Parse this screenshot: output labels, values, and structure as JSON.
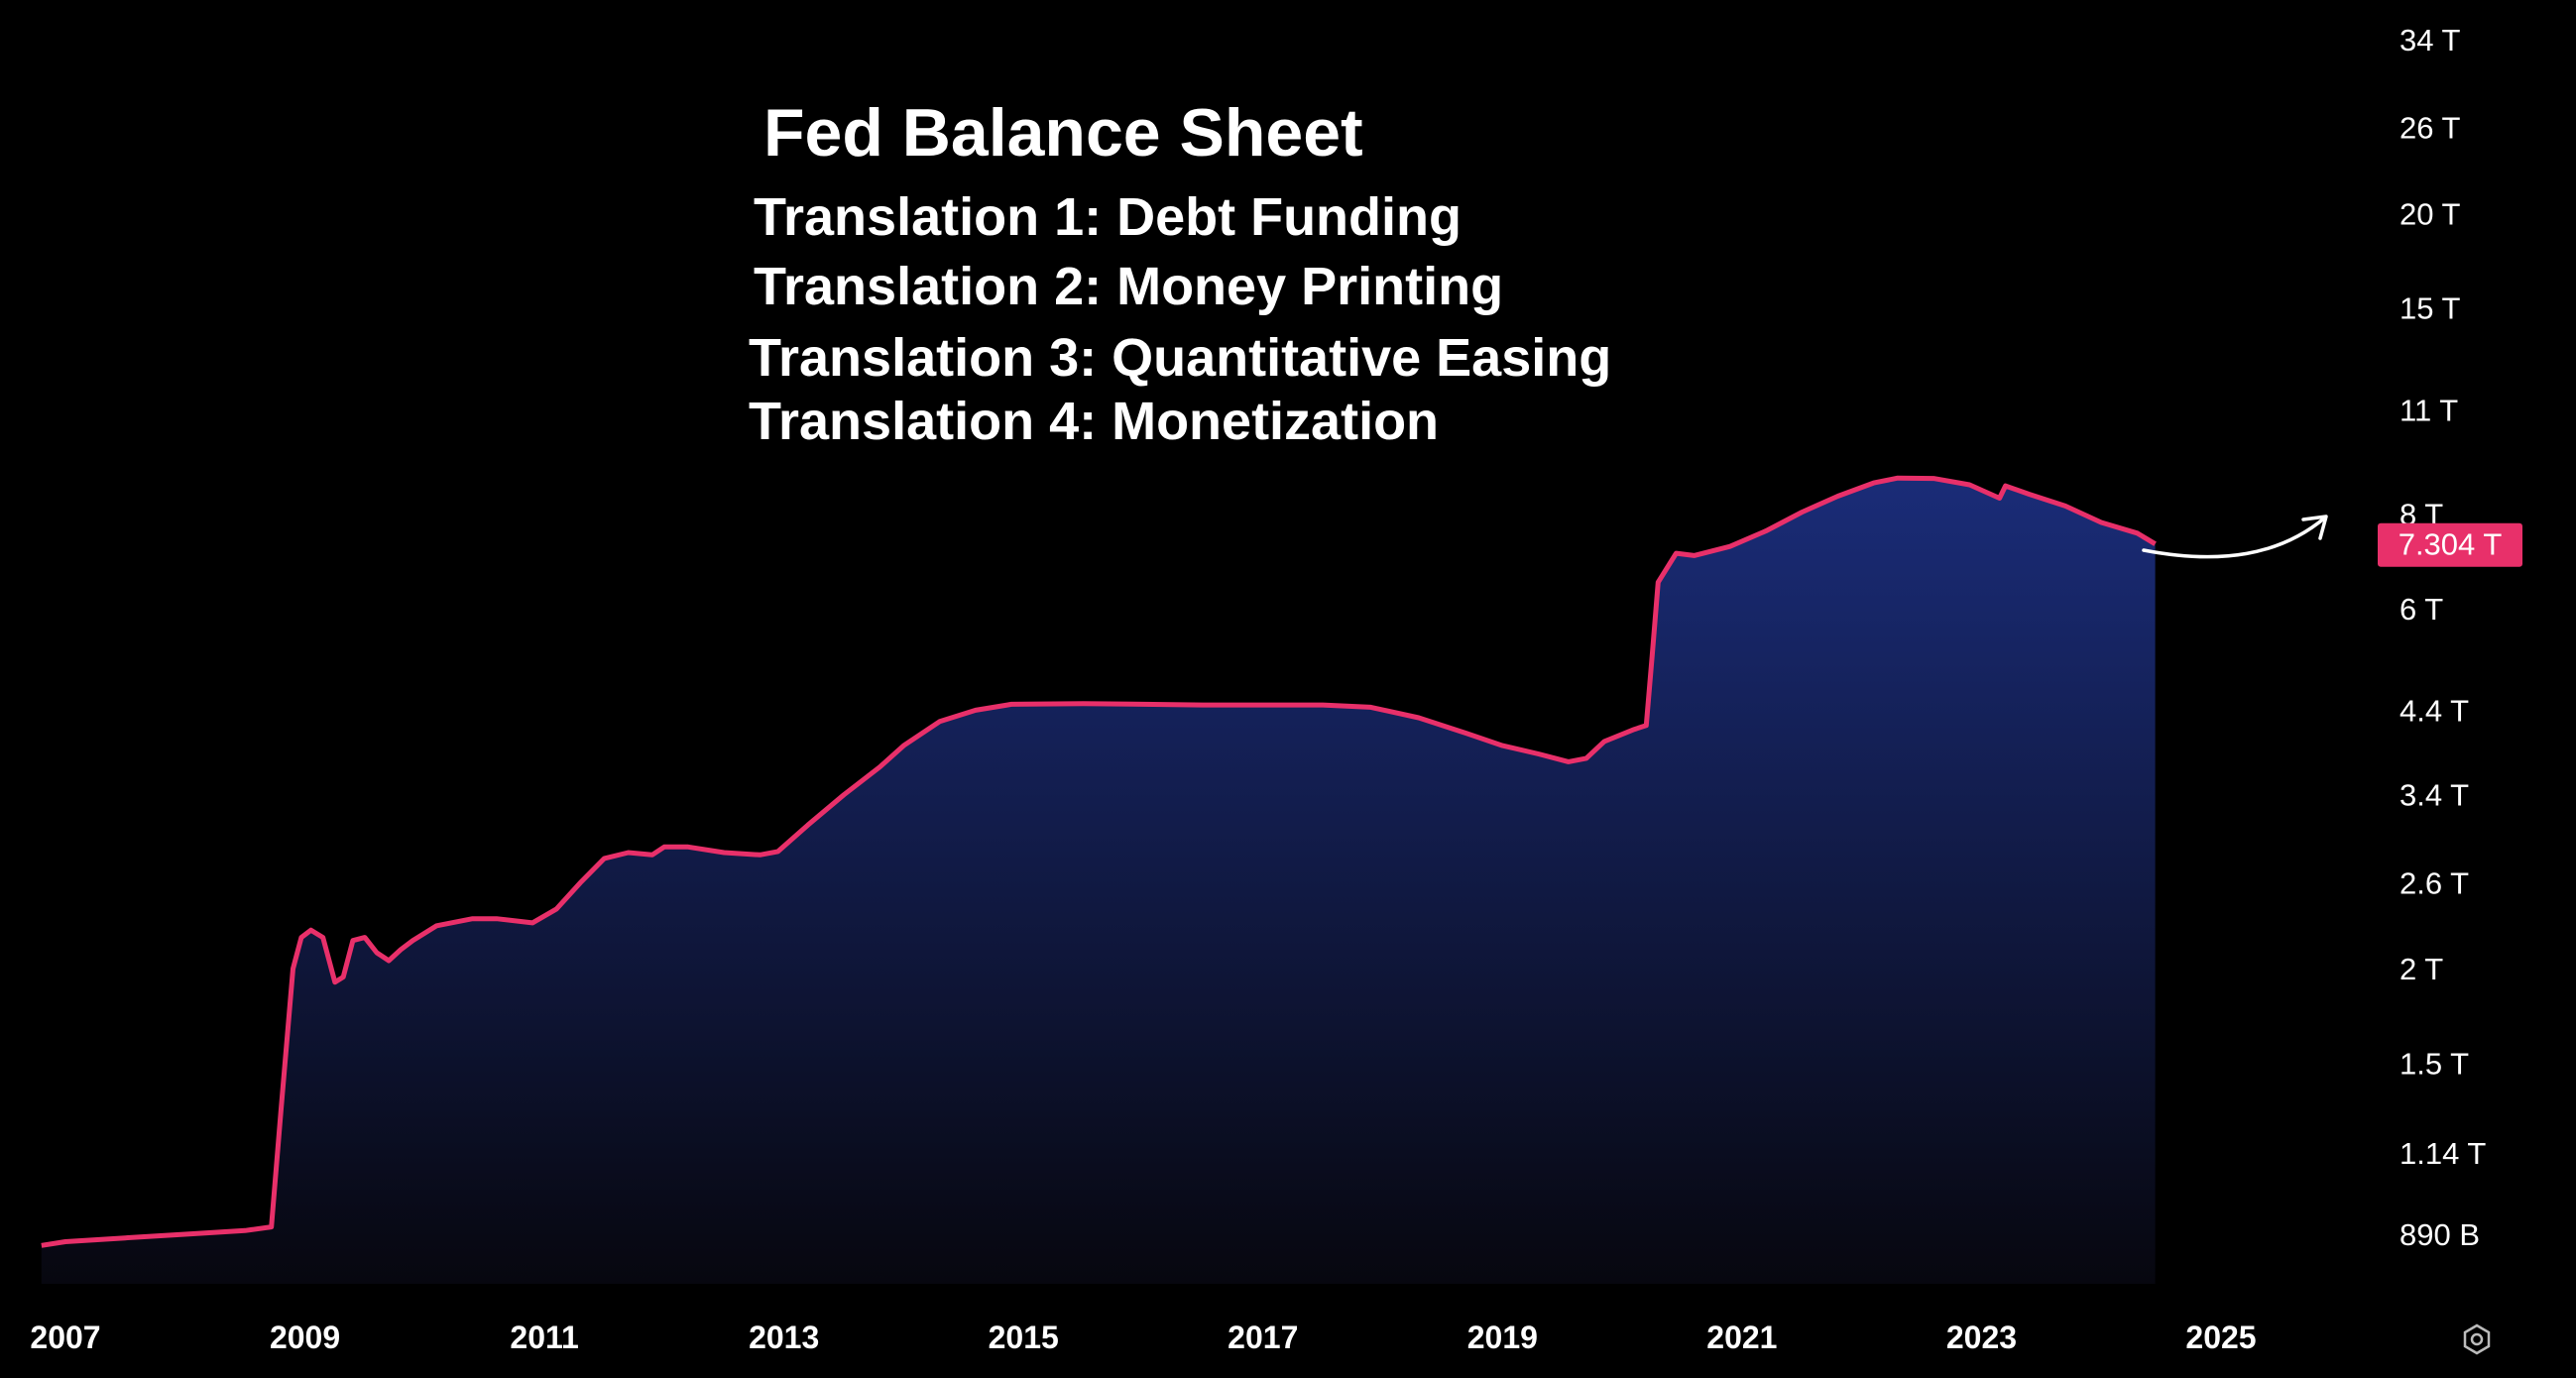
{
  "header": {
    "title": "Fed Balance Sheet",
    "translations": [
      "Translation 1: Debt Funding",
      "Translation 2: Money Printing",
      "Translation 3: Quantitative Easing",
      "Translation 4: Monetization"
    ]
  },
  "colors": {
    "background": "#000000",
    "line": "#e8306a",
    "fill_top": "#1a2c78",
    "fill_bottom": "#07070f",
    "axis_text": "#ffffff",
    "price_badge": "#e8306a"
  },
  "icons": {
    "settings": "gear-icon",
    "annotation": "curved-arrow-icon"
  },
  "chart_data": {
    "type": "area",
    "y_scale": "log",
    "ylim": [
      700000000000,
      40000000000000
    ],
    "xlim": [
      2006.8,
      2027.3
    ],
    "grid": false,
    "x_ticks": [
      "2007",
      "2009",
      "2011",
      "2013",
      "2015",
      "2017",
      "2019",
      "2021",
      "2023",
      "2025"
    ],
    "y_ticks": [
      {
        "label": "34 T",
        "value": 34000000000000
      },
      {
        "label": "26 T",
        "value": 26000000000000
      },
      {
        "label": "20 T",
        "value": 20000000000000
      },
      {
        "label": "15 T",
        "value": 15000000000000
      },
      {
        "label": "11 T",
        "value": 11000000000000
      },
      {
        "label": "8 T",
        "value": 8000000000000
      },
      {
        "label": "6 T",
        "value": 6000000000000
      },
      {
        "label": "4.4 T",
        "value": 4400000000000
      },
      {
        "label": "3.4 T",
        "value": 3400000000000
      },
      {
        "label": "2.6 T",
        "value": 2600000000000
      },
      {
        "label": "2 T",
        "value": 2000000000000
      },
      {
        "label": "1.5 T",
        "value": 1500000000000
      },
      {
        "label": "1.14 T",
        "value": 1140000000000
      },
      {
        "label": "890 B",
        "value": 890000000000
      }
    ],
    "last_value_label": "7.304 T",
    "last_value": 7304000000000,
    "series": [
      {
        "points": [
          [
            2006.8,
            0.86
          ],
          [
            2007.0,
            0.87
          ],
          [
            2007.5,
            0.88
          ],
          [
            2008.0,
            0.89
          ],
          [
            2008.5,
            0.9
          ],
          [
            2008.72,
            0.91
          ],
          [
            2008.8,
            1.3
          ],
          [
            2008.9,
            2.0
          ],
          [
            2008.97,
            2.2
          ],
          [
            2009.05,
            2.25
          ],
          [
            2009.15,
            2.2
          ],
          [
            2009.25,
            1.92
          ],
          [
            2009.32,
            1.95
          ],
          [
            2009.4,
            2.18
          ],
          [
            2009.5,
            2.2
          ],
          [
            2009.6,
            2.1
          ],
          [
            2009.7,
            2.05
          ],
          [
            2009.8,
            2.12
          ],
          [
            2009.9,
            2.18
          ],
          [
            2010.1,
            2.28
          ],
          [
            2010.4,
            2.33
          ],
          [
            2010.6,
            2.33
          ],
          [
            2010.9,
            2.3
          ],
          [
            2011.1,
            2.4
          ],
          [
            2011.3,
            2.6
          ],
          [
            2011.5,
            2.8
          ],
          [
            2011.7,
            2.85
          ],
          [
            2011.9,
            2.83
          ],
          [
            2012.0,
            2.9
          ],
          [
            2012.2,
            2.9
          ],
          [
            2012.5,
            2.85
          ],
          [
            2012.8,
            2.83
          ],
          [
            2012.95,
            2.86
          ],
          [
            2013.2,
            3.1
          ],
          [
            2013.5,
            3.4
          ],
          [
            2013.8,
            3.7
          ],
          [
            2014.0,
            3.95
          ],
          [
            2014.3,
            4.25
          ],
          [
            2014.6,
            4.4
          ],
          [
            2014.9,
            4.48
          ],
          [
            2015.5,
            4.49
          ],
          [
            2016.0,
            4.48
          ],
          [
            2016.5,
            4.47
          ],
          [
            2017.0,
            4.47
          ],
          [
            2017.5,
            4.47
          ],
          [
            2017.9,
            4.44
          ],
          [
            2018.3,
            4.3
          ],
          [
            2018.7,
            4.1
          ],
          [
            2019.0,
            3.95
          ],
          [
            2019.3,
            3.85
          ],
          [
            2019.55,
            3.76
          ],
          [
            2019.7,
            3.8
          ],
          [
            2019.85,
            4.0
          ],
          [
            2020.1,
            4.15
          ],
          [
            2020.2,
            4.2
          ],
          [
            2020.25,
            5.2
          ],
          [
            2020.3,
            6.5
          ],
          [
            2020.45,
            7.1
          ],
          [
            2020.6,
            7.05
          ],
          [
            2020.9,
            7.25
          ],
          [
            2021.2,
            7.6
          ],
          [
            2021.5,
            8.05
          ],
          [
            2021.8,
            8.45
          ],
          [
            2022.1,
            8.8
          ],
          [
            2022.3,
            8.93
          ],
          [
            2022.6,
            8.92
          ],
          [
            2022.9,
            8.75
          ],
          [
            2023.15,
            8.4
          ],
          [
            2023.2,
            8.72
          ],
          [
            2023.4,
            8.5
          ],
          [
            2023.7,
            8.2
          ],
          [
            2024.0,
            7.8
          ],
          [
            2024.3,
            7.55
          ],
          [
            2024.45,
            7.304
          ]
        ]
      }
    ]
  }
}
